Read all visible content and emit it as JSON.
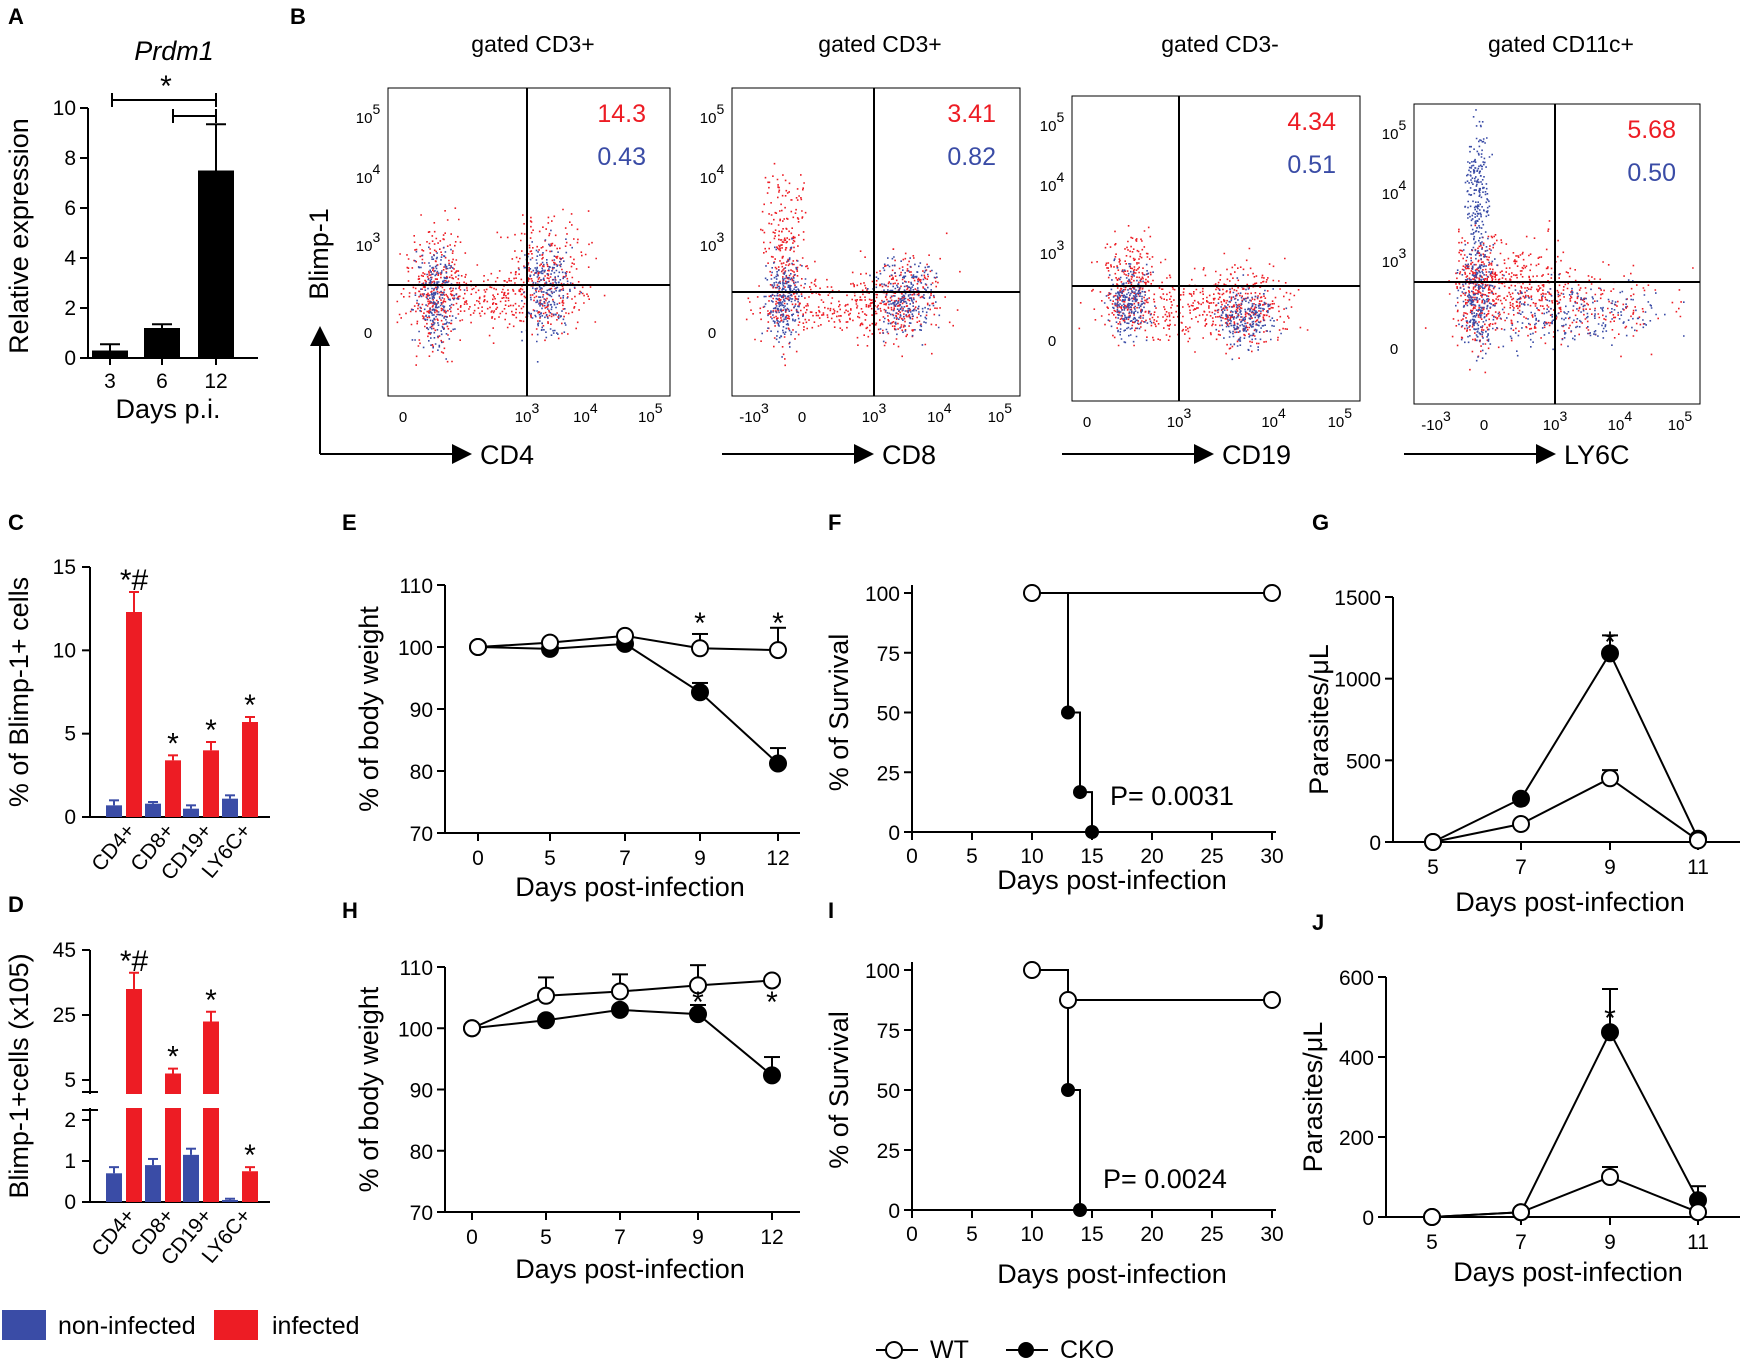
{
  "colors": {
    "infected": "#ed1c24",
    "noninfected": "#3a4ca6",
    "black": "#000000"
  },
  "legend_bottom": {
    "noninfected": "non-infected",
    "infected": "infected"
  },
  "legend_survival": {
    "wt": "WT",
    "cko": "CKO"
  },
  "chart_data": [
    {
      "panel": "A",
      "type": "bar",
      "title": "Prdm1",
      "categories": [
        "3",
        "6",
        "12"
      ],
      "values": [
        0.3,
        1.2,
        7.5
      ],
      "errors": [
        0.25,
        0.15,
        1.85
      ],
      "xlabel": "Days p.i.",
      "ylabel": "Relative expression",
      "ylim": [
        0,
        10
      ],
      "yticks": [
        "0",
        "2",
        "4",
        "6",
        "8",
        "10"
      ],
      "annotations": [
        "*"
      ]
    },
    {
      "panel": "B",
      "type": "scatter",
      "subtype": "flow-cytometry",
      "ylabel": "Blimp-1",
      "plots": [
        {
          "title": "gated CD3+",
          "xlabel": "CD4",
          "infected_pct": "14.3",
          "noninfected_pct": "0.43",
          "xticks": [
            "0",
            "10",
            "10",
            "10"
          ],
          "xexp": [
            "",
            "3",
            "4",
            "5"
          ]
        },
        {
          "title": "gated CD3+",
          "xlabel": "CD8",
          "infected_pct": "3.41",
          "noninfected_pct": "0.82",
          "xticks": [
            "-10",
            "0",
            "10",
            "10",
            "10"
          ],
          "xexp": [
            "3",
            "",
            "3",
            "4",
            "5"
          ]
        },
        {
          "title": "gated CD3-",
          "xlabel": "CD19",
          "infected_pct": "4.34",
          "noninfected_pct": "0.51",
          "xticks": [
            "0",
            "10",
            "10",
            "10"
          ],
          "xexp": [
            "",
            "3",
            "4",
            "5"
          ]
        },
        {
          "title": "gated CD11c+",
          "xlabel": "LY6C",
          "infected_pct": "5.68",
          "noninfected_pct": "0.50",
          "xticks": [
            "-10",
            "0",
            "10",
            "10",
            "10"
          ],
          "xexp": [
            "3",
            "",
            "3",
            "4",
            "5"
          ]
        }
      ],
      "yticks": [
        "10",
        "10",
        "10",
        "0"
      ],
      "yexp": [
        "5",
        "4",
        "3",
        ""
      ]
    },
    {
      "panel": "C",
      "type": "bar",
      "ylabel": "% of Blimp-1+ cells",
      "ylim": [
        0,
        15
      ],
      "yticks": [
        "0",
        "5",
        "10",
        "15"
      ],
      "categories": [
        "CD4+",
        "CD8+",
        "CD19+",
        "LY6C+"
      ],
      "series": [
        {
          "name": "non-infected",
          "values": [
            0.7,
            0.8,
            0.5,
            1.1
          ],
          "errors": [
            0.3,
            0.1,
            0.2,
            0.2
          ]
        },
        {
          "name": "infected",
          "values": [
            12.3,
            3.4,
            4.0,
            5.7
          ],
          "errors": [
            1.2,
            0.3,
            0.5,
            0.3
          ]
        }
      ],
      "annotations": [
        "*#",
        "*",
        "*",
        "*"
      ]
    },
    {
      "panel": "D",
      "type": "bar",
      "ylabel": "Blimp-1+cells (x105)",
      "axis_break": true,
      "yticks": [
        "0",
        "1",
        "2",
        "5",
        "25",
        "45"
      ],
      "categories": [
        "CD4+",
        "CD8+",
        "CD19+",
        "LY6C+"
      ],
      "series": [
        {
          "name": "non-infected",
          "values": [
            0.7,
            0.9,
            1.15,
            0.05
          ],
          "errors": [
            0.15,
            0.15,
            0.15,
            0.03
          ]
        },
        {
          "name": "infected",
          "values": [
            33,
            7,
            23,
            0.75
          ],
          "errors": [
            5,
            1.5,
            3,
            0.1
          ]
        }
      ],
      "annotations": [
        "*#",
        "*",
        "*",
        "*"
      ]
    },
    {
      "panel": "E",
      "type": "line",
      "xlabel": "Days post-infection",
      "ylabel": "% of body weight",
      "ylim": [
        70,
        110
      ],
      "x": [
        0,
        5,
        7,
        9,
        12
      ],
      "xticks": [
        "0",
        "5",
        "7",
        "9",
        "12"
      ],
      "yticks": [
        "70",
        "80",
        "90",
        "100",
        "110"
      ],
      "series": [
        {
          "name": "WT",
          "values": [
            100,
            100.7,
            101.8,
            99.8,
            99.5
          ],
          "errors": [
            0.5,
            0.5,
            0.5,
            2.3,
            3.6
          ]
        },
        {
          "name": "CKO",
          "values": [
            100,
            99.7,
            100.5,
            92.7,
            81.2
          ],
          "errors": [
            0.5,
            0.5,
            0.5,
            1.5,
            2.5
          ]
        }
      ],
      "annotations": [
        "*",
        "*"
      ]
    },
    {
      "panel": "F",
      "type": "line",
      "subtype": "survival",
      "xlabel": "Days post-infection",
      "ylabel": "% of Survival",
      "ylim": [
        0,
        100
      ],
      "xlim": [
        0,
        30
      ],
      "xticks": [
        "0",
        "5",
        "10",
        "15",
        "20",
        "25",
        "30"
      ],
      "yticks": [
        "0",
        "25",
        "50",
        "75",
        "100"
      ],
      "series": [
        {
          "name": "WT",
          "x": [
            10,
            30
          ],
          "values": [
            100,
            100
          ]
        },
        {
          "name": "CKO",
          "x": [
            13,
            14,
            15
          ],
          "values": [
            50,
            16.7,
            0
          ]
        }
      ],
      "pvalue": "P= 0.0031"
    },
    {
      "panel": "G",
      "type": "line",
      "xlabel": "Days post-infection",
      "ylabel": "Parasites/μL",
      "ylim": [
        0,
        1500
      ],
      "x": [
        5,
        7,
        9,
        11
      ],
      "xticks": [
        "5",
        "7",
        "9",
        "11"
      ],
      "yticks": [
        "0",
        "500",
        "1000",
        "1500"
      ],
      "series": [
        {
          "name": "WT",
          "values": [
            0,
            110,
            390,
            10
          ],
          "errors": [
            0,
            0,
            50,
            0
          ]
        },
        {
          "name": "CKO",
          "values": [
            0,
            265,
            1155,
            20
          ],
          "errors": [
            0,
            0,
            110,
            0
          ]
        }
      ],
      "annotations": [
        "*"
      ]
    },
    {
      "panel": "H",
      "type": "line",
      "xlabel": "Days post-infection",
      "ylabel": "% of body weight",
      "ylim": [
        70,
        110
      ],
      "x": [
        0,
        5,
        7,
        9,
        12
      ],
      "xticks": [
        "0",
        "5",
        "7",
        "9",
        "12"
      ],
      "yticks": [
        "70",
        "80",
        "90",
        "100",
        "110"
      ],
      "series": [
        {
          "name": "WT",
          "values": [
            100,
            105.3,
            106,
            107,
            107.8
          ],
          "errors": [
            0.5,
            3,
            2.8,
            3.3,
            0.5
          ]
        },
        {
          "name": "CKO",
          "values": [
            100,
            101.3,
            103,
            102.3,
            92.3
          ],
          "errors": [
            0.5,
            0.5,
            0.5,
            1.5,
            3
          ]
        }
      ],
      "annotations": [
        "*",
        "*"
      ]
    },
    {
      "panel": "I",
      "type": "line",
      "subtype": "survival",
      "xlabel": "Days post-infection",
      "ylabel": "% of Survival",
      "ylim": [
        0,
        100
      ],
      "xlim": [
        0,
        30
      ],
      "xticks": [
        "0",
        "5",
        "10",
        "15",
        "20",
        "25",
        "30"
      ],
      "yticks": [
        "0",
        "25",
        "50",
        "75",
        "100"
      ],
      "series": [
        {
          "name": "WT",
          "x": [
            10,
            13,
            30
          ],
          "values": [
            100,
            87.5,
            87.5
          ]
        },
        {
          "name": "CKO",
          "x": [
            13,
            14
          ],
          "values": [
            50,
            0
          ]
        }
      ],
      "pvalue": "P= 0.0024"
    },
    {
      "panel": "J",
      "type": "line",
      "xlabel": "Days post-infection",
      "ylabel": "Parasites/μL",
      "ylim": [
        0,
        600
      ],
      "x": [
        5,
        7,
        9,
        11
      ],
      "xticks": [
        "5",
        "7",
        "9",
        "11"
      ],
      "yticks": [
        "0",
        "200",
        "400",
        "600"
      ],
      "series": [
        {
          "name": "WT",
          "values": [
            0,
            12,
            100,
            12
          ],
          "errors": [
            0,
            0,
            25,
            0
          ]
        },
        {
          "name": "CKO",
          "values": [
            0,
            12,
            462,
            42
          ],
          "errors": [
            0,
            0,
            108,
            35
          ]
        }
      ],
      "annotations": [
        "*"
      ]
    }
  ]
}
